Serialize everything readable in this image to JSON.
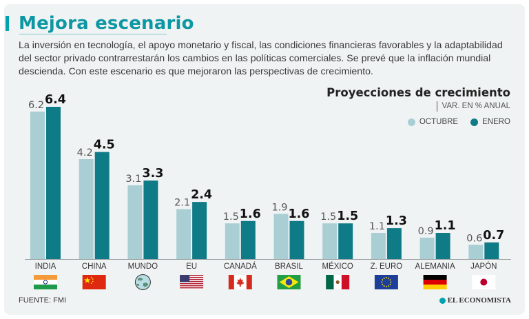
{
  "header": {
    "title": "Mejora escenario",
    "description": "La inversión en tecnología, el apoyo monetario y fiscal, las condiciones financieras favorables y la adaptabilidad del sector privado contrarrestarán los cambios en las políticas comerciales. Se prevé que la inflación mundial descienda. Con este escenario es que mejoraron las perspectivas de crecimiento."
  },
  "chart_data": {
    "type": "bar",
    "title": "Proyecciones de crecimiento",
    "subtitle": "VAR. EN % ANUAL",
    "categories": [
      "INDIA",
      "CHINA",
      "MUNDO",
      "EU",
      "CANADÁ",
      "BRASIL",
      "MÉXICO",
      "Z. EURO",
      "ALEMANIA",
      "JAPÓN"
    ],
    "flags": [
      "india-flag-icon",
      "china-flag-icon",
      "globe-icon",
      "usa-flag-icon",
      "canada-flag-icon",
      "brazil-flag-icon",
      "mexico-flag-icon",
      "eu-flag-icon",
      "germany-flag-icon",
      "japan-flag-icon"
    ],
    "series": [
      {
        "name": "OCTUBRE",
        "color": "#a9cfd4",
        "values": [
          6.2,
          4.2,
          3.1,
          2.1,
          1.5,
          1.9,
          1.5,
          1.1,
          0.9,
          0.6
        ],
        "labels": [
          "6.2",
          "4.2",
          "3.1",
          "2.1",
          "1.5",
          "1.9",
          "1.5",
          "1.1",
          "0.9",
          "0.6"
        ]
      },
      {
        "name": "ENERO",
        "color": "#0f7b86",
        "values": [
          6.4,
          4.5,
          3.3,
          2.4,
          1.6,
          1.6,
          1.5,
          1.3,
          1.1,
          0.7
        ],
        "labels": [
          "6.4",
          "4.5",
          "3.3",
          "2.4",
          "1.6",
          "1.6",
          "1.5",
          "1.3",
          "1.1",
          "0.7"
        ]
      }
    ],
    "ylim": [
      0,
      6.4
    ],
    "xlabel": "",
    "ylabel": ""
  },
  "footer": {
    "source": "FUENTE: FMI",
    "brand": "EL ECONOMISTA"
  },
  "colors": {
    "accent": "#00a3ad",
    "octubre": "#a9cfd4",
    "enero": "#0f7b86"
  }
}
